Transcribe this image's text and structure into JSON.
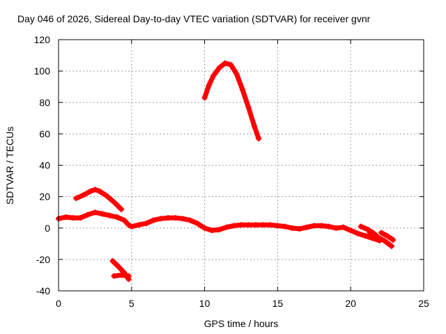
{
  "chart_data": {
    "type": "line",
    "title": "Day 046 of 2026, Sidereal Day-to-day VTEC variation (SDTVAR) for receiver gvnr",
    "xlabel": "GPS time / hours",
    "ylabel": "SDTVAR / TECUs",
    "xlim": [
      0,
      25
    ],
    "ylim": [
      -40,
      120
    ],
    "xticks": [
      0,
      5,
      10,
      15,
      20,
      25
    ],
    "yticks": [
      -40,
      -20,
      0,
      20,
      40,
      60,
      80,
      100,
      120
    ],
    "grid": true,
    "color": "#ff0000",
    "series": [
      {
        "name": "arc-main",
        "points": [
          [
            0,
            6
          ],
          [
            0.5,
            7
          ],
          [
            1,
            6.5
          ],
          [
            1.5,
            6.5
          ],
          [
            2,
            8.5
          ],
          [
            2.5,
            10
          ],
          [
            3,
            9
          ],
          [
            3.5,
            8
          ],
          [
            4,
            7
          ],
          [
            4.5,
            5
          ],
          [
            4.8,
            2
          ],
          [
            5,
            1
          ],
          [
            5.5,
            2
          ],
          [
            6,
            3
          ],
          [
            6.5,
            5
          ],
          [
            7,
            6
          ],
          [
            7.5,
            6.5
          ],
          [
            8,
            6.5
          ],
          [
            8.5,
            6
          ],
          [
            9,
            5
          ],
          [
            9.5,
            3
          ],
          [
            10,
            0
          ],
          [
            10.5,
            -1.5
          ],
          [
            11,
            -1
          ],
          [
            11.5,
            0.5
          ],
          [
            12,
            1.5
          ],
          [
            12.5,
            2
          ],
          [
            13,
            2
          ],
          [
            13.5,
            2
          ],
          [
            14,
            2
          ],
          [
            14.5,
            2
          ],
          [
            15,
            1.5
          ],
          [
            15.5,
            1
          ],
          [
            16,
            0
          ],
          [
            16.5,
            -0.5
          ],
          [
            17,
            0.5
          ],
          [
            17.5,
            1.5
          ],
          [
            18,
            1.5
          ],
          [
            18.5,
            1
          ],
          [
            19,
            0
          ],
          [
            19.5,
            0.5
          ],
          [
            20,
            -1.5
          ],
          [
            20.5,
            -3.5
          ],
          [
            21,
            -5
          ],
          [
            21.5,
            -6.5
          ],
          [
            22,
            -8
          ]
        ]
      },
      {
        "name": "arc-upper-left",
        "points": [
          [
            1.2,
            19
          ],
          [
            1.7,
            21
          ],
          [
            2.2,
            23.5
          ],
          [
            2.5,
            24.5
          ],
          [
            2.8,
            23.5
          ],
          [
            3.3,
            20.5
          ],
          [
            3.8,
            16.5
          ],
          [
            4.3,
            12
          ]
        ]
      },
      {
        "name": "arc-peak",
        "points": [
          [
            10,
            83
          ],
          [
            10.3,
            91
          ],
          [
            10.6,
            97
          ],
          [
            11,
            102
          ],
          [
            11.4,
            105
          ],
          [
            11.8,
            104
          ],
          [
            12.2,
            98
          ],
          [
            12.6,
            88
          ],
          [
            13,
            77
          ],
          [
            13.4,
            65
          ],
          [
            13.7,
            57
          ]
        ]
      },
      {
        "name": "arc-negative",
        "points": [
          [
            3.7,
            -21
          ],
          [
            4.1,
            -24.5
          ],
          [
            4.5,
            -28.5
          ],
          [
            4.8,
            -32.5
          ]
        ]
      },
      {
        "name": "arc-negative-flat",
        "points": [
          [
            3.8,
            -30.5
          ],
          [
            4.3,
            -30
          ],
          [
            4.8,
            -30.5
          ]
        ]
      },
      {
        "name": "arc-late-1",
        "points": [
          [
            20.7,
            1
          ],
          [
            21.2,
            -1
          ],
          [
            21.6,
            -3.5
          ],
          [
            22,
            -7
          ]
        ]
      },
      {
        "name": "arc-late-2",
        "points": [
          [
            21.3,
            -3
          ],
          [
            21.8,
            -5.5
          ],
          [
            22.3,
            -8
          ],
          [
            22.8,
            -11.5
          ]
        ]
      },
      {
        "name": "arc-late-3",
        "points": [
          [
            22.1,
            -3
          ],
          [
            22.5,
            -5
          ],
          [
            22.9,
            -7.5
          ]
        ]
      }
    ]
  }
}
